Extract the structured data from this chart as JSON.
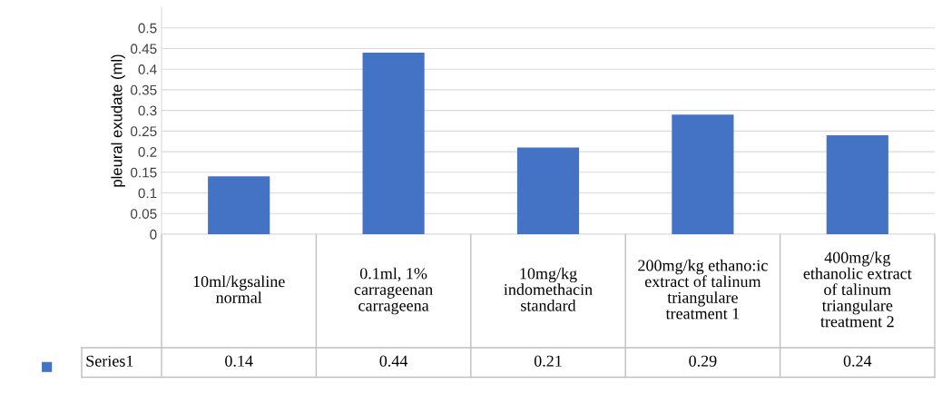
{
  "chart_data": {
    "type": "bar",
    "ylabel": "pleural exudate (ml)",
    "categories": [
      "10ml/kgsaline\nnormal",
      "0.1ml, 1%\ncarrageenan\ncarrageena",
      "10mg/kg\nindomethacin\nstandard",
      "200mg/kg ethano:ic\nextract of talinum\ntriangulare\ntreatment 1",
      "400mg/kg\nethanolic extract\nof talinum\ntriangulare\ntreatment 2"
    ],
    "series": [
      {
        "name": "Series1",
        "color": "#4472c4",
        "values": [
          0.14,
          0.44,
          0.21,
          0.29,
          0.24
        ]
      }
    ],
    "ylim": [
      0,
      0.55
    ],
    "yticks": [
      0,
      0.05,
      0.1,
      0.15,
      0.2,
      0.25,
      0.3,
      0.35,
      0.4,
      0.45,
      0.5
    ],
    "grid": "y",
    "data_labels": true,
    "legend": "bottom left"
  }
}
